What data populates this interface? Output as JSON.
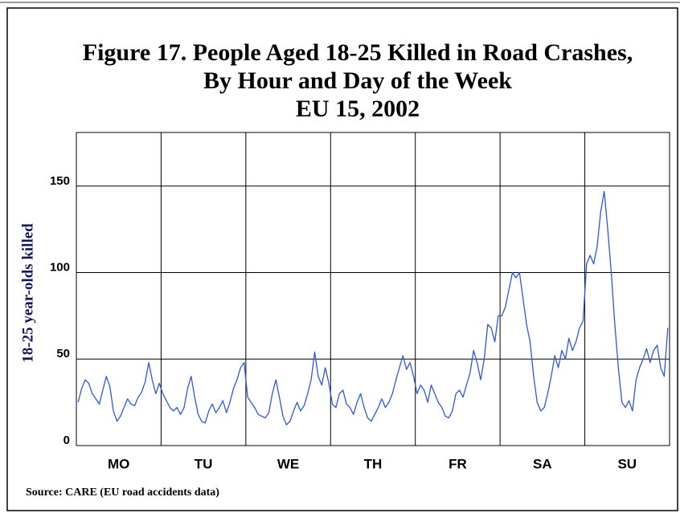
{
  "chart_data": {
    "type": "line",
    "title": "Figure 17. People Aged 18-25 Killed in Road Crashes,",
    "subtitle": "By Hour and Day of the Week",
    "subtitle2": "EU 15, 2002",
    "y_label": "18-25 year-olds killed",
    "source": "Source: CARE (EU road accidents data)",
    "categories": [
      "MO",
      "TU",
      "WE",
      "TH",
      "FR",
      "SA",
      "SU"
    ],
    "values": [
      [
        25,
        33,
        38,
        36,
        30,
        27,
        24,
        32,
        40,
        34,
        20,
        14,
        17,
        22,
        27,
        24,
        23,
        28,
        31,
        37,
        48,
        38,
        30,
        36
      ],
      [
        30,
        26,
        22,
        20,
        22,
        18,
        22,
        33,
        40,
        28,
        18,
        14,
        13,
        20,
        24,
        19,
        22,
        26,
        19,
        25,
        33,
        38,
        45,
        48
      ],
      [
        28,
        25,
        22,
        18,
        17,
        16,
        19,
        30,
        38,
        28,
        17,
        12,
        14,
        20,
        25,
        20,
        23,
        30,
        38,
        54,
        40,
        35,
        45,
        36
      ],
      [
        24,
        22,
        30,
        32,
        24,
        22,
        18,
        25,
        30,
        22,
        16,
        14,
        18,
        22,
        27,
        22,
        25,
        30,
        38,
        45,
        52,
        44,
        48,
        40
      ],
      [
        30,
        35,
        32,
        25,
        35,
        30,
        25,
        22,
        17,
        16,
        20,
        30,
        32,
        28,
        35,
        42,
        55,
        48,
        38,
        50,
        70,
        68,
        60,
        75
      ],
      [
        75,
        80,
        90,
        100,
        97,
        100,
        85,
        70,
        60,
        40,
        25,
        20,
        22,
        30,
        40,
        52,
        45,
        55,
        50,
        62,
        55,
        60,
        68,
        72
      ],
      [
        105,
        110,
        105,
        115,
        135,
        147,
        125,
        100,
        70,
        45,
        25,
        22,
        26,
        20,
        38,
        45,
        50,
        56,
        48,
        55,
        58,
        45,
        40,
        68
      ]
    ],
    "color": "#2f55e6",
    "ylim": [
      0,
      181
    ],
    "yticks": [
      0,
      50,
      100,
      150
    ],
    "grid": true
  }
}
